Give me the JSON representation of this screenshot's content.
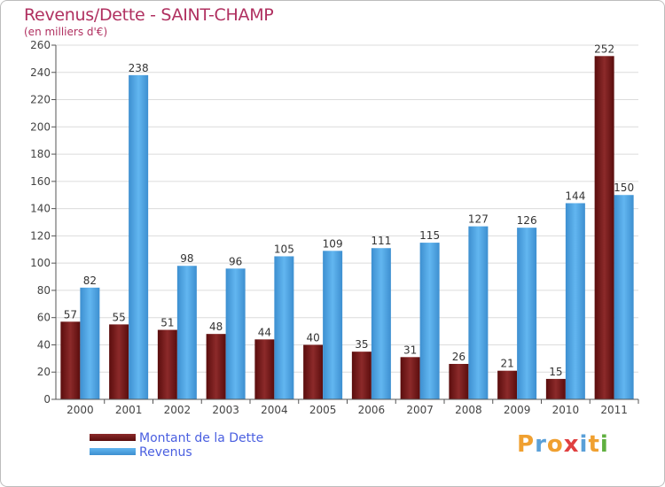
{
  "chart_data": {
    "type": "bar",
    "title": "Revenus/Dette - SAINT-CHAMP",
    "subtitle": "(en milliers d'€)",
    "categories": [
      "2000",
      "2001",
      "2002",
      "2003",
      "2004",
      "2005",
      "2006",
      "2007",
      "2008",
      "2009",
      "2010",
      "2011"
    ],
    "series": [
      {
        "name": "Montant de la Dette",
        "color": "#7a1a1a",
        "values": [
          57,
          55,
          51,
          48,
          44,
          40,
          35,
          31,
          26,
          21,
          15,
          252
        ]
      },
      {
        "name": "Revenus",
        "color": "#4ea6e6",
        "values": [
          82,
          238,
          98,
          96,
          105,
          109,
          111,
          115,
          127,
          126,
          144,
          150
        ]
      }
    ],
    "ylim": [
      0,
      260
    ],
    "yticks": [
      0,
      20,
      40,
      60,
      80,
      100,
      120,
      140,
      160,
      180,
      200,
      220,
      240,
      260
    ],
    "grid": true,
    "legend": "bottom-left"
  },
  "logo": {
    "text": "Proxiti",
    "colors": [
      "#f0a030",
      "#5aa0d8",
      "#f0a030",
      "#e04040",
      "#5aa0d8",
      "#f0a030",
      "#60b040"
    ]
  }
}
